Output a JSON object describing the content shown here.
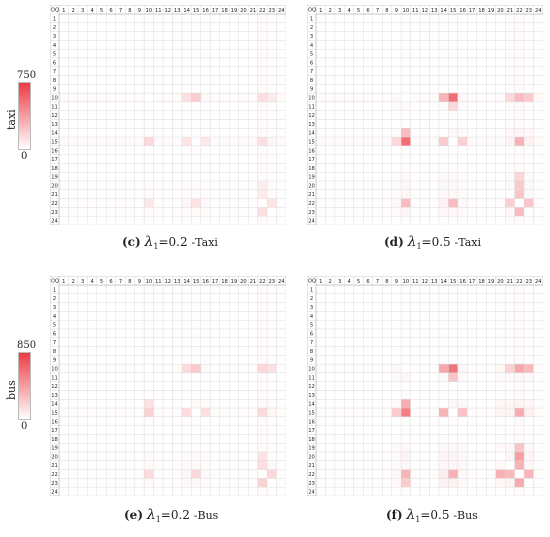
{
  "chart_data": [
    {
      "type": "heatmap",
      "id": "c",
      "caption_letter": "(c)",
      "lambda_symbol": "λ",
      "lambda_sub": "1",
      "lambda_value": "=0.2",
      "mode_label": "-Taxi",
      "corner_label": "O",
      "corner_label2": "Q",
      "rows": [
        "1",
        "2",
        "3",
        "4",
        "5",
        "6",
        "7",
        "8",
        "9",
        "10",
        "11",
        "12",
        "13",
        "14",
        "15",
        "16",
        "17",
        "18",
        "19",
        "20",
        "21",
        "22",
        "23",
        "24"
      ],
      "cols": [
        "1",
        "2",
        "3",
        "4",
        "5",
        "6",
        "7",
        "8",
        "9",
        "10",
        "11",
        "12",
        "13",
        "14",
        "15",
        "16",
        "17",
        "18",
        "19",
        "20",
        "21",
        "22",
        "23",
        "24"
      ],
      "color_min": 0,
      "color_max": 750,
      "hot": [
        {
          "r": 10,
          "c": 15,
          "v": 190
        },
        {
          "r": 10,
          "c": 14,
          "v": 120
        },
        {
          "r": 10,
          "c": 22,
          "v": 120
        },
        {
          "r": 10,
          "c": 23,
          "v": 80
        },
        {
          "r": 15,
          "c": 10,
          "v": 150
        },
        {
          "r": 15,
          "c": 14,
          "v": 100
        },
        {
          "r": 15,
          "c": 22,
          "v": 120
        },
        {
          "r": 15,
          "c": 16,
          "v": 90
        },
        {
          "r": 22,
          "c": 10,
          "v": 90
        },
        {
          "r": 22,
          "c": 15,
          "v": 110
        },
        {
          "r": 22,
          "c": 23,
          "v": 100
        },
        {
          "r": 23,
          "c": 22,
          "v": 120
        },
        {
          "r": 21,
          "c": 22,
          "v": 80
        },
        {
          "r": 20,
          "c": 22,
          "v": 70
        }
      ]
    },
    {
      "type": "heatmap",
      "id": "d",
      "caption_letter": "(d)",
      "lambda_symbol": "λ",
      "lambda_sub": "1",
      "lambda_value": "=0.5",
      "mode_label": "-Taxi",
      "corner_label": "O",
      "corner_label2": "Q",
      "rows": [
        "1",
        "2",
        "3",
        "4",
        "5",
        "6",
        "7",
        "8",
        "9",
        "10",
        "11",
        "12",
        "13",
        "14",
        "15",
        "16",
        "17",
        "18",
        "19",
        "20",
        "21",
        "22",
        "23",
        "24"
      ],
      "cols": [
        "1",
        "2",
        "3",
        "4",
        "5",
        "6",
        "7",
        "8",
        "9",
        "10",
        "11",
        "12",
        "13",
        "14",
        "15",
        "16",
        "17",
        "18",
        "19",
        "20",
        "21",
        "22",
        "23",
        "24"
      ],
      "color_min": 0,
      "color_max": 750,
      "hot": [
        {
          "r": 10,
          "c": 15,
          "v": 560
        },
        {
          "r": 10,
          "c": 14,
          "v": 280
        },
        {
          "r": 10,
          "c": 22,
          "v": 260
        },
        {
          "r": 10,
          "c": 23,
          "v": 200
        },
        {
          "r": 10,
          "c": 21,
          "v": 150
        },
        {
          "r": 15,
          "c": 10,
          "v": 560
        },
        {
          "r": 15,
          "c": 14,
          "v": 200
        },
        {
          "r": 15,
          "c": 22,
          "v": 300
        },
        {
          "r": 15,
          "c": 16,
          "v": 180
        },
        {
          "r": 15,
          "c": 9,
          "v": 150
        },
        {
          "r": 14,
          "c": 10,
          "v": 260
        },
        {
          "r": 22,
          "c": 10,
          "v": 260
        },
        {
          "r": 22,
          "c": 15,
          "v": 260
        },
        {
          "r": 22,
          "c": 23,
          "v": 220
        },
        {
          "r": 22,
          "c": 21,
          "v": 180
        },
        {
          "r": 23,
          "c": 22,
          "v": 260
        },
        {
          "r": 21,
          "c": 22,
          "v": 220
        },
        {
          "r": 20,
          "c": 22,
          "v": 200
        },
        {
          "r": 19,
          "c": 22,
          "v": 160
        },
        {
          "r": 11,
          "c": 15,
          "v": 150
        }
      ]
    },
    {
      "type": "heatmap",
      "id": "e",
      "caption_letter": "(e)",
      "lambda_symbol": "λ",
      "lambda_sub": "1",
      "lambda_value": "=0.2",
      "mode_label": "-Bus",
      "corner_label": "O",
      "corner_label2": "Q",
      "rows": [
        "1",
        "2",
        "3",
        "4",
        "5",
        "6",
        "7",
        "8",
        "9",
        "10",
        "11",
        "12",
        "13",
        "14",
        "15",
        "16",
        "17",
        "18",
        "19",
        "20",
        "21",
        "22",
        "23",
        "24"
      ],
      "cols": [
        "1",
        "2",
        "3",
        "4",
        "5",
        "6",
        "7",
        "8",
        "9",
        "10",
        "11",
        "12",
        "13",
        "14",
        "15",
        "16",
        "17",
        "18",
        "19",
        "20",
        "21",
        "22",
        "23",
        "24"
      ],
      "color_min": 0,
      "color_max": 850,
      "hot": [
        {
          "r": 10,
          "c": 15,
          "v": 230
        },
        {
          "r": 10,
          "c": 14,
          "v": 160
        },
        {
          "r": 10,
          "c": 22,
          "v": 170
        },
        {
          "r": 10,
          "c": 23,
          "v": 130
        },
        {
          "r": 15,
          "c": 10,
          "v": 200
        },
        {
          "r": 15,
          "c": 14,
          "v": 150
        },
        {
          "r": 15,
          "c": 22,
          "v": 160
        },
        {
          "r": 15,
          "c": 16,
          "v": 140
        },
        {
          "r": 22,
          "c": 10,
          "v": 160
        },
        {
          "r": 22,
          "c": 15,
          "v": 170
        },
        {
          "r": 22,
          "c": 23,
          "v": 170
        },
        {
          "r": 23,
          "c": 22,
          "v": 190
        },
        {
          "r": 21,
          "c": 22,
          "v": 140
        },
        {
          "r": 20,
          "c": 22,
          "v": 120
        },
        {
          "r": 14,
          "c": 10,
          "v": 130
        }
      ]
    },
    {
      "type": "heatmap",
      "id": "f",
      "caption_letter": "(f)",
      "lambda_symbol": "λ",
      "lambda_sub": "1",
      "lambda_value": "=0.5",
      "mode_label": "-Bus",
      "corner_label": "O",
      "corner_label2": "Q",
      "rows": [
        "1",
        "2",
        "3",
        "4",
        "5",
        "6",
        "7",
        "8",
        "9",
        "10",
        "11",
        "12",
        "13",
        "14",
        "15",
        "16",
        "17",
        "18",
        "19",
        "20",
        "21",
        "22",
        "23",
        "24"
      ],
      "cols": [
        "1",
        "2",
        "3",
        "4",
        "5",
        "6",
        "7",
        "8",
        "9",
        "10",
        "11",
        "12",
        "13",
        "14",
        "15",
        "16",
        "17",
        "18",
        "19",
        "20",
        "21",
        "22",
        "23",
        "24"
      ],
      "color_min": 0,
      "color_max": 850,
      "hot": [
        {
          "r": 10,
          "c": 15,
          "v": 600
        },
        {
          "r": 10,
          "c": 14,
          "v": 380
        },
        {
          "r": 10,
          "c": 22,
          "v": 380
        },
        {
          "r": 10,
          "c": 23,
          "v": 300
        },
        {
          "r": 10,
          "c": 21,
          "v": 200
        },
        {
          "r": 15,
          "c": 10,
          "v": 560
        },
        {
          "r": 15,
          "c": 14,
          "v": 330
        },
        {
          "r": 15,
          "c": 22,
          "v": 360
        },
        {
          "r": 15,
          "c": 16,
          "v": 260
        },
        {
          "r": 15,
          "c": 9,
          "v": 220
        },
        {
          "r": 14,
          "c": 10,
          "v": 360
        },
        {
          "r": 22,
          "c": 10,
          "v": 330
        },
        {
          "r": 22,
          "c": 15,
          "v": 340
        },
        {
          "r": 22,
          "c": 23,
          "v": 320
        },
        {
          "r": 22,
          "c": 21,
          "v": 300
        },
        {
          "r": 22,
          "c": 20,
          "v": 340
        },
        {
          "r": 23,
          "c": 22,
          "v": 360
        },
        {
          "r": 21,
          "c": 22,
          "v": 330
        },
        {
          "r": 20,
          "c": 22,
          "v": 420
        },
        {
          "r": 19,
          "c": 22,
          "v": 250
        },
        {
          "r": 11,
          "c": 15,
          "v": 250
        },
        {
          "r": 23,
          "c": 10,
          "v": 220
        }
      ]
    }
  ],
  "legends": [
    {
      "id": "taxi",
      "variable": "taxi",
      "max_label": "750",
      "min_label": "0"
    },
    {
      "id": "bus",
      "variable": "bus",
      "max_label": "850",
      "min_label": "0"
    }
  ],
  "colors": {
    "low": "#ffffff",
    "high": "#ee3b45",
    "grid_line": "#d8d8d8",
    "border": "#9a9a9a"
  }
}
